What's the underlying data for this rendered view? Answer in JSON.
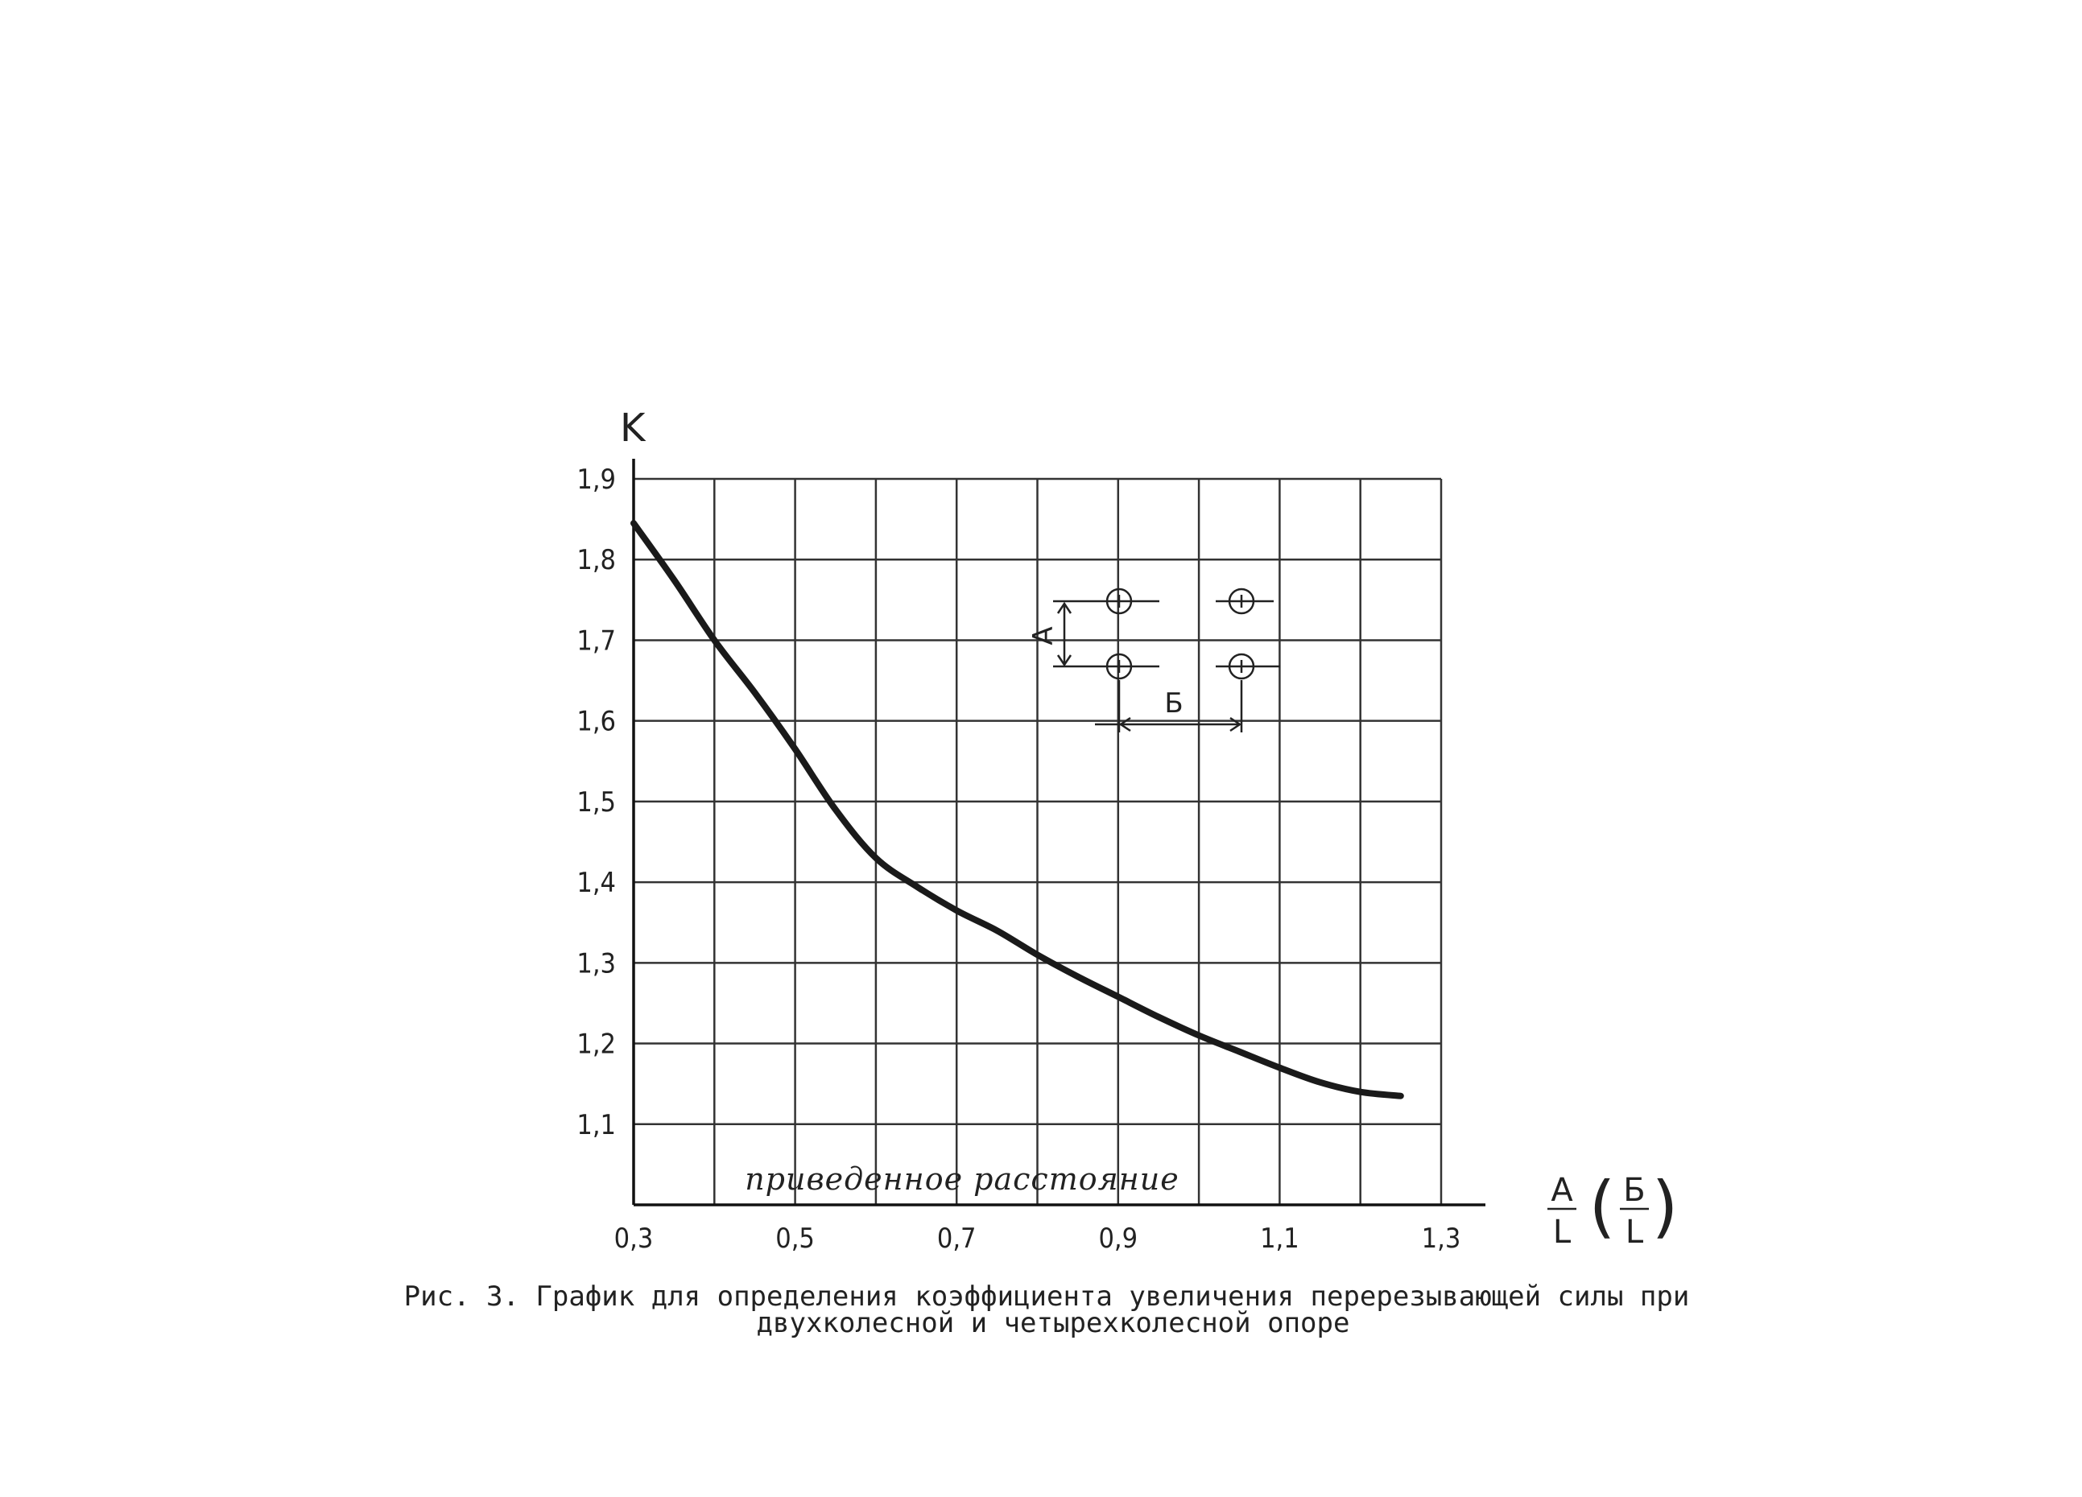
{
  "chart_data": {
    "type": "line",
    "ylabel": "K",
    "xlabel_num1": "A",
    "xlabel_den1": "L",
    "xlabel_num2": "Б",
    "xlabel_den2": "L",
    "x_ticks": [
      "0,3",
      "0,5",
      "0,7",
      "0,9",
      "1,1",
      "1,3"
    ],
    "y_ticks": [
      "1,1",
      "1,2",
      "1,3",
      "1,4",
      "1,5",
      "1,6",
      "1,7",
      "1,8",
      "1,9"
    ],
    "xlim": [
      0.3,
      1.3
    ],
    "ylim": [
      1.0,
      1.9
    ],
    "grid": true,
    "series": [
      {
        "x": [
          0.3,
          0.35,
          0.4,
          0.45,
          0.5,
          0.55,
          0.6,
          0.65,
          0.7,
          0.75,
          0.8,
          0.85,
          0.9,
          0.95,
          1.0,
          1.05,
          1.1,
          1.15,
          1.2,
          1.25
        ],
        "values": [
          1.845,
          1.775,
          1.7,
          1.635,
          1.565,
          1.49,
          1.43,
          1.395,
          1.365,
          1.34,
          1.31,
          1.283,
          1.258,
          1.233,
          1.21,
          1.19,
          1.17,
          1.152,
          1.14,
          1.135
        ]
      }
    ],
    "annotation": "приведенное расстояние",
    "inset": {
      "label_a": "А",
      "label_b": "Б"
    }
  },
  "caption": {
    "line1": "Рис. 3. График для определения коэффициента увеличения перерезывающей силы  при",
    "line2": "двухколесной и четырехколесной опоре"
  }
}
